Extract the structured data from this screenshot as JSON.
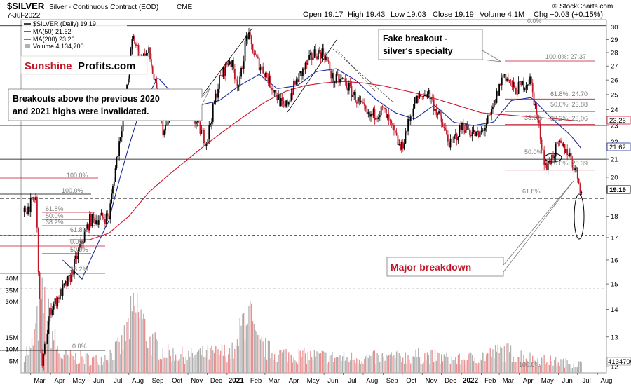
{
  "header": {
    "symbol": "$SILVER",
    "description": "Silver - Continuous Contract (EOD)",
    "exchange": "CME",
    "date": "7-Jul-2022",
    "open": "Open 19.17",
    "high": "High 19.43",
    "low": "Low 19.03",
    "close": "Close 19.19",
    "volume": "Volume 4.1M",
    "change": "Chg +0.03 (+0.15%)",
    "watermark": "© StockCharts.com"
  },
  "legend": {
    "price": "$SILVER (Daily) 19.19",
    "ma50": "MA(50) 21.62",
    "ma200": "MA(200) 23.26",
    "volume": "Volume 4,134,700"
  },
  "logo": {
    "part1": "Sunshine",
    "part2": "Profits.com"
  },
  "annotations": {
    "fake_breakout_line1": "Fake breakout -",
    "fake_breakout_line2": "silver's specialty",
    "breakouts_line1": "Breakouts above the previous 2020",
    "breakouts_line2": "and 2021 highs were invalidated.",
    "major_breakdown": "Major breakdown"
  },
  "price_axis": {
    "ticks": [
      "30",
      "29",
      "28",
      "27",
      "26",
      "25",
      "24",
      "23",
      "22",
      "21",
      "20",
      "18",
      "17",
      "16",
      "15",
      "14",
      "13",
      "12"
    ],
    "tags": {
      "ma200": "23.26",
      "ma50": "21.62",
      "last": "19.19",
      "volume": "4134700"
    }
  },
  "volume_axis": {
    "ticks": [
      "40M",
      "35M",
      "30M",
      "15M",
      "10M",
      "5M"
    ]
  },
  "fib_labels": {
    "top_0": "0.0%",
    "top_100": "100.0%: 27.37",
    "f618": "61.8%: 24.70",
    "f50": "50.0%: 23.88",
    "f382_a": "38.2%",
    "f382_b": "38.2%: 23.06",
    "f50_b": "50.0%",
    "f0_b": "0.0%: 20.39",
    "left_100a": "100.0%",
    "left_100b": "100.0%",
    "left_618": "61.8%",
    "left_50": "50.0%",
    "left_382": "38.2%",
    "left_618b": "61.8%",
    "left_0": "0.0%",
    "left_50b": "50.0%",
    "left_382b": "38.2%",
    "left_0b": "0.0%",
    "right_618": "61.8%",
    "bottom_100": "100.0%"
  },
  "colors": {
    "up": "#000000",
    "down": "#c0182a",
    "ma50": "#1c2c9a",
    "ma200": "#d0142c",
    "volume": "#b0b0b0",
    "volume_down": "#e89090",
    "fib": "#c0182a",
    "highlight": "#c0182a"
  },
  "chart_data": {
    "type": "candlestick",
    "title": "$SILVER Silver - Continuous Contract (EOD) CME",
    "x_months": [
      "Mar",
      "Apr",
      "May",
      "Jun",
      "Jul",
      "Aug",
      "Sep",
      "Oct",
      "Nov",
      "Dec",
      "2021",
      "Feb",
      "Mar",
      "Apr",
      "May",
      "Jun",
      "Jul",
      "Aug",
      "Sep",
      "Oct",
      "Nov",
      "Dec",
      "2022",
      "Feb",
      "Mar",
      "Apr",
      "May",
      "Jun",
      "Jul",
      "Aug"
    ],
    "x_range": [
      "2020-02-15",
      "2022-08-15"
    ],
    "ylim": [
      11.8,
      30.6
    ],
    "y_scale": "log",
    "price_anchors": [
      [
        "2020-02-20",
        18.2
      ],
      [
        "2020-03-09",
        18.9
      ],
      [
        "2020-03-18",
        11.8
      ],
      [
        "2020-04-01",
        14.0
      ],
      [
        "2020-05-01",
        15.2
      ],
      [
        "2020-06-01",
        17.8
      ],
      [
        "2020-07-01",
        18.0
      ],
      [
        "2020-07-27",
        24.5
      ],
      [
        "2020-08-07",
        29.2
      ],
      [
        "2020-08-20",
        27.5
      ],
      [
        "2020-09-01",
        28.0
      ],
      [
        "2020-09-24",
        22.5
      ],
      [
        "2020-10-15",
        24.5
      ],
      [
        "2020-11-09",
        23.5
      ],
      [
        "2020-11-30",
        22.0
      ],
      [
        "2020-12-20",
        26.0
      ],
      [
        "2021-01-05",
        27.5
      ],
      [
        "2021-01-20",
        25.5
      ],
      [
        "2021-02-01",
        29.5
      ],
      [
        "2021-02-15",
        27.5
      ],
      [
        "2021-03-01",
        26.5
      ],
      [
        "2021-03-31",
        24.0
      ],
      [
        "2021-04-20",
        26.0
      ],
      [
        "2021-05-18",
        28.0
      ],
      [
        "2021-06-01",
        28.0
      ],
      [
        "2021-06-15",
        26.0
      ],
      [
        "2021-07-01",
        26.0
      ],
      [
        "2021-08-09",
        23.5
      ],
      [
        "2021-09-01",
        24.0
      ],
      [
        "2021-09-29",
        21.5
      ],
      [
        "2021-10-20",
        24.5
      ],
      [
        "2021-11-10",
        25.2
      ],
      [
        "2021-12-15",
        21.8
      ],
      [
        "2022-01-03",
        23.0
      ],
      [
        "2022-01-28",
        22.3
      ],
      [
        "2022-02-15",
        23.5
      ],
      [
        "2022-03-08",
        26.5
      ],
      [
        "2022-03-25",
        25.3
      ],
      [
        "2022-04-18",
        26.0
      ],
      [
        "2022-05-10",
        21.0
      ],
      [
        "2022-05-13",
        20.5
      ],
      [
        "2022-06-01",
        21.8
      ],
      [
        "2022-06-15",
        21.5
      ],
      [
        "2022-06-30",
        20.2
      ],
      [
        "2022-07-07",
        19.2
      ]
    ],
    "ma50_anchors": [
      [
        "2020-04-20",
        16.0
      ],
      [
        "2020-05-20",
        15.2
      ],
      [
        "2020-07-01",
        17.8
      ],
      [
        "2020-08-15",
        23.5
      ],
      [
        "2020-09-15",
        26.2
      ],
      [
        "2020-10-15",
        24.7
      ],
      [
        "2020-11-20",
        24.3
      ],
      [
        "2020-12-20",
        24.6
      ],
      [
        "2021-01-20",
        25.6
      ],
      [
        "2021-02-20",
        26.4
      ],
      [
        "2021-03-20",
        25.4
      ],
      [
        "2021-04-20",
        25.6
      ],
      [
        "2021-05-20",
        26.6
      ],
      [
        "2021-06-20",
        26.8
      ],
      [
        "2021-07-20",
        26.0
      ],
      [
        "2021-08-20",
        24.7
      ],
      [
        "2021-09-20",
        23.8
      ],
      [
        "2021-10-20",
        23.4
      ],
      [
        "2021-11-20",
        24.3
      ],
      [
        "2021-12-20",
        23.2
      ],
      [
        "2022-01-20",
        23.0
      ],
      [
        "2022-02-20",
        23.2
      ],
      [
        "2022-03-20",
        24.6
      ],
      [
        "2022-04-20",
        24.8
      ],
      [
        "2022-05-20",
        23.5
      ],
      [
        "2022-06-20",
        22.4
      ],
      [
        "2022-07-07",
        21.6
      ]
    ],
    "ma200_anchors": [
      [
        "2020-05-01",
        16.9
      ],
      [
        "2020-06-01",
        16.9
      ],
      [
        "2020-07-01",
        17.2
      ],
      [
        "2020-08-01",
        18.0
      ],
      [
        "2020-09-01",
        19.2
      ],
      [
        "2020-10-01",
        20.1
      ],
      [
        "2020-11-01",
        21.0
      ],
      [
        "2020-12-01",
        21.9
      ],
      [
        "2021-01-01",
        22.8
      ],
      [
        "2021-02-01",
        23.7
      ],
      [
        "2021-03-01",
        24.5
      ],
      [
        "2021-04-01",
        25.2
      ],
      [
        "2021-05-01",
        25.6
      ],
      [
        "2021-06-01",
        25.8
      ],
      [
        "2021-07-01",
        25.9
      ],
      [
        "2021-08-01",
        25.8
      ],
      [
        "2021-09-01",
        25.6
      ],
      [
        "2021-10-01",
        25.3
      ],
      [
        "2021-11-01",
        25.0
      ],
      [
        "2021-12-01",
        24.6
      ],
      [
        "2022-01-01",
        24.2
      ],
      [
        "2022-02-01",
        23.8
      ],
      [
        "2022-03-01",
        23.7
      ],
      [
        "2022-04-01",
        23.6
      ],
      [
        "2022-05-01",
        23.5
      ],
      [
        "2022-06-01",
        23.4
      ],
      [
        "2022-07-07",
        23.26
      ]
    ],
    "volume_scale": [
      0,
      45000000
    ],
    "volume_anchors": [
      [
        "2020-03-01",
        10000000
      ],
      [
        "2020-03-20",
        33000000
      ],
      [
        "2020-04-15",
        8000000
      ],
      [
        "2020-05-15",
        7000000
      ],
      [
        "2020-06-15",
        6000000
      ],
      [
        "2020-07-20",
        12000000
      ],
      [
        "2020-08-05",
        25000000
      ],
      [
        "2020-08-15",
        30000000
      ],
      [
        "2020-09-01",
        15000000
      ],
      [
        "2020-10-01",
        9000000
      ],
      [
        "2020-11-01",
        8000000
      ],
      [
        "2020-12-01",
        9000000
      ],
      [
        "2021-01-15",
        10000000
      ],
      [
        "2021-02-01",
        32000000
      ],
      [
        "2021-02-15",
        14000000
      ],
      [
        "2021-03-15",
        9000000
      ],
      [
        "2021-05-01",
        8000000
      ],
      [
        "2021-07-01",
        7000000
      ],
      [
        "2021-09-01",
        7000000
      ],
      [
        "2021-11-01",
        8000000
      ],
      [
        "2022-01-01",
        6000000
      ],
      [
        "2022-03-08",
        10000000
      ],
      [
        "2022-05-01",
        6000000
      ],
      [
        "2022-07-07",
        4134700
      ]
    ],
    "horizontal_levels": [
      {
        "value": 30.1,
        "style": "solid"
      },
      {
        "value": 23.0,
        "style": "solid"
      },
      {
        "value": 21.0,
        "style": "solid"
      },
      {
        "value": 18.9,
        "style": "dashed-heavy"
      },
      {
        "value": 17.1,
        "style": "dashed"
      },
      {
        "value": 14.8,
        "style": "dashed"
      }
    ],
    "fib_levels": [
      27.37,
      24.7,
      23.88,
      23.06,
      20.39
    ]
  }
}
